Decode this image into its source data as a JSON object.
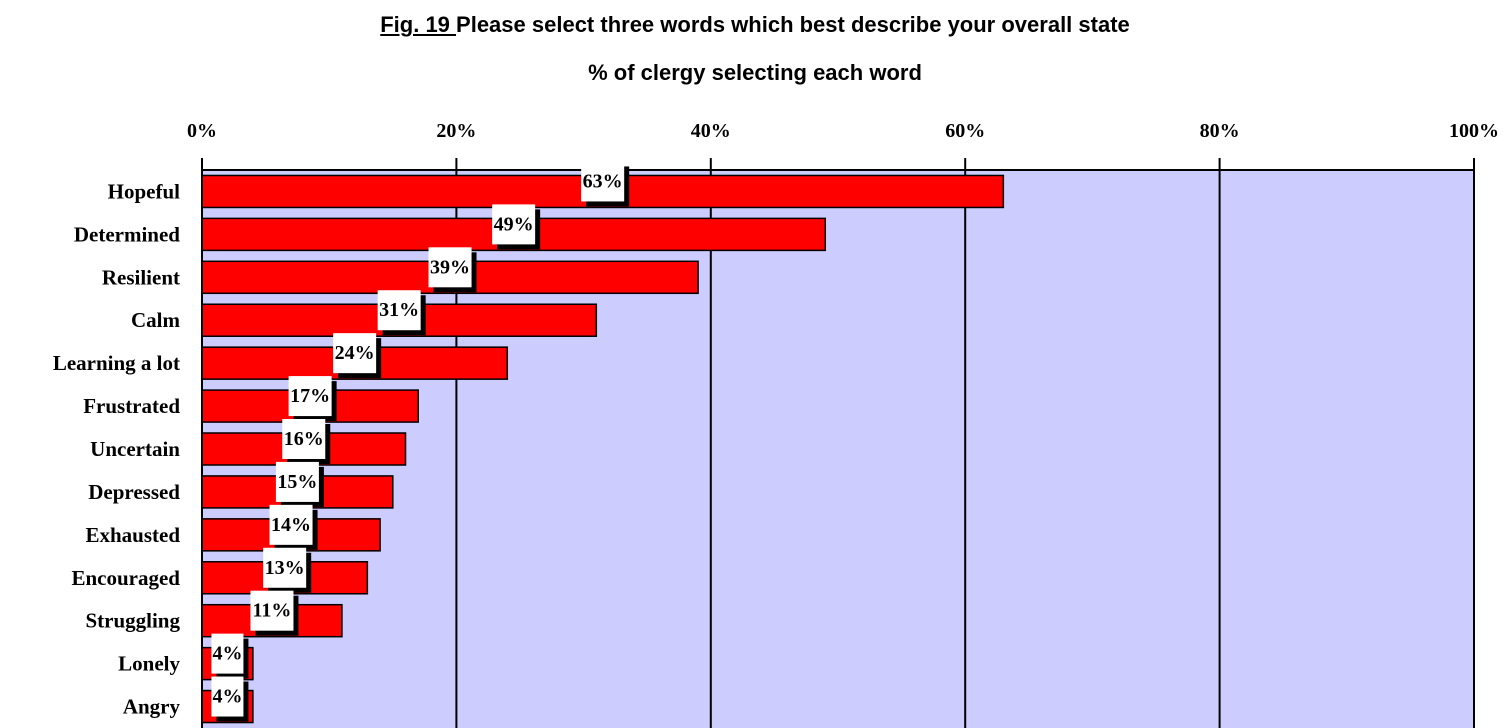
{
  "figure": {
    "fig_label": "Fig. 19 ",
    "title": "Please select three words which best describe your overall state",
    "subtitle": "% of clergy selecting each word"
  },
  "colors": {
    "bar": "#ff0000",
    "plot_background": "#ccccff",
    "gridline": "#000000",
    "label_box": "#ffffff"
  },
  "chart_data": {
    "type": "bar",
    "orientation": "horizontal",
    "title": "Please select three words which best describe your overall state",
    "subtitle": "% of clergy selecting each word",
    "categories": [
      "Hopeful",
      "Determined",
      "Resilient",
      "Calm",
      "Learning a lot",
      "Frustrated",
      "Uncertain",
      "Depressed",
      "Exhausted",
      "Encouraged",
      "Struggling",
      "Lonely",
      "Angry"
    ],
    "values": [
      63,
      49,
      39,
      31,
      24,
      17,
      16,
      15,
      14,
      13,
      11,
      4,
      4
    ],
    "data_labels": [
      "63%",
      "49%",
      "39%",
      "31%",
      "24%",
      "17%",
      "16%",
      "15%",
      "14%",
      "13%",
      "11%",
      "4%",
      "4%"
    ],
    "xlim": [
      0,
      100
    ],
    "xticks": [
      0,
      20,
      40,
      60,
      80,
      100
    ],
    "xtick_labels": [
      "0%",
      "20%",
      "40%",
      "60%",
      "80%",
      "100%"
    ],
    "x_axis_position": "top",
    "grid": true,
    "legend": "none"
  }
}
